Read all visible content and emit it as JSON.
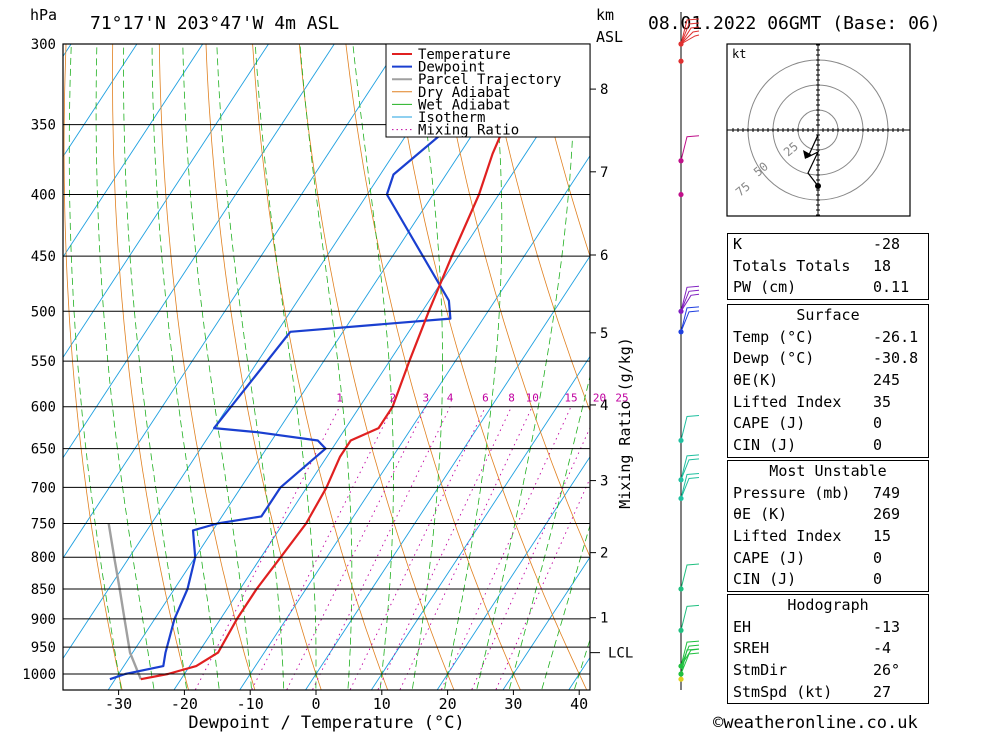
{
  "header": {
    "hpa_unit": "hPa",
    "location": "71°17'N  203°47'W  4m  ASL",
    "km_unit": "km",
    "asl_unit": "ASL",
    "datetime": "08.01.2022  06GMT  (Base: 06)",
    "footer": "©weatheronline.co.uk"
  },
  "colors": {
    "temperature": "#e02020",
    "dewpoint": "#1a3fd0",
    "parcel": "#a0a0a0",
    "dry_adiabat": "#e08020",
    "wet_adiabat": "#20b020",
    "isotherm": "#1fa0e0",
    "mixing_ratio": "#c000a0"
  },
  "chart_data": {
    "type": "line",
    "title": "71°17'N  203°47'W  4m  ASL",
    "xlabel": "Dewpoint / Temperature (°C)",
    "ylabel": "hPa",
    "xlim": [
      -40,
      40
    ],
    "ylim": [
      1050,
      300
    ],
    "x_ticks": [
      -30,
      -20,
      -10,
      0,
      10,
      20,
      30,
      40
    ],
    "pressure_levels": [
      300,
      350,
      400,
      450,
      500,
      550,
      600,
      650,
      700,
      750,
      800,
      850,
      900,
      950,
      1000
    ],
    "km_label": "km",
    "km_ticks": [
      {
        "km": "1",
        "p": 898
      },
      {
        "km": "2",
        "p": 793
      },
      {
        "km": "3",
        "p": 691
      },
      {
        "km": "4",
        "p": 598
      },
      {
        "km": "5",
        "p": 521
      },
      {
        "km": "6",
        "p": 449
      },
      {
        "km": "7",
        "p": 383
      },
      {
        "km": "8",
        "p": 327
      }
    ],
    "lcl_label": "LCL",
    "lcl_p": 960,
    "mixing_ratio_label": "Mixing Ratio (g/kg)",
    "mixing_ratios": [
      "1",
      "2",
      "3",
      "4",
      "6",
      "8",
      "10",
      "15",
      "20",
      "25"
    ],
    "legend": [
      "Temperature",
      "Dewpoint",
      "Parcel Trajectory",
      "Dry Adiabat",
      "Wet Adiabat",
      "Isotherm",
      "Mixing Ratio"
    ],
    "series": [
      {
        "name": "Temperature",
        "points": [
          [
            1010,
            -26.1
          ],
          [
            1000,
            -22.5
          ],
          [
            985,
            -19
          ],
          [
            960,
            -17
          ],
          [
            900,
            -17.5
          ],
          [
            850,
            -17.5
          ],
          [
            800,
            -17
          ],
          [
            750,
            -16.5
          ],
          [
            700,
            -17
          ],
          [
            660,
            -18
          ],
          [
            640,
            -18
          ],
          [
            625,
            -15
          ],
          [
            600,
            -15
          ],
          [
            550,
            -17
          ],
          [
            500,
            -19
          ],
          [
            450,
            -21
          ],
          [
            400,
            -23
          ],
          [
            370,
            -25
          ],
          [
            350,
            -26
          ],
          [
            320,
            -25
          ],
          [
            300,
            -24
          ]
        ]
      },
      {
        "name": "Dewpoint",
        "points": [
          [
            1010,
            -30.8
          ],
          [
            1000,
            -29
          ],
          [
            985,
            -24
          ],
          [
            960,
            -25
          ],
          [
            900,
            -27
          ],
          [
            850,
            -28
          ],
          [
            800,
            -30
          ],
          [
            760,
            -33
          ],
          [
            750,
            -30
          ],
          [
            740,
            -24
          ],
          [
            700,
            -24
          ],
          [
            650,
            -21
          ],
          [
            640,
            -23
          ],
          [
            630,
            -33
          ],
          [
            625,
            -40
          ],
          [
            520,
            -38
          ],
          [
            507,
            -15
          ],
          [
            490,
            -17
          ],
          [
            400,
            -37
          ],
          [
            385,
            -38
          ],
          [
            350,
            -34
          ],
          [
            330,
            -36
          ],
          [
            315,
            -32
          ],
          [
            300,
            -31
          ]
        ]
      },
      {
        "name": "Parcel Trajectory",
        "points": [
          [
            1010,
            -26.1
          ],
          [
            960,
            -30.4
          ],
          [
            900,
            -34.6
          ],
          [
            850,
            -38.3
          ],
          [
            800,
            -42.3
          ],
          [
            750,
            -46.5
          ]
        ]
      }
    ]
  },
  "hodograph": {
    "unit": "kt",
    "rings": [
      "25",
      "50",
      "75"
    ]
  },
  "indices": {
    "general": [
      {
        "label": "K",
        "value": "-28"
      },
      {
        "label": "Totals Totals",
        "value": "18"
      },
      {
        "label": "PW (cm)",
        "value": "0.11"
      }
    ],
    "surface": {
      "title": "Surface",
      "rows": [
        {
          "label": "Temp (°C)",
          "value": "-26.1"
        },
        {
          "label": "Dewp (°C)",
          "value": "-30.8"
        },
        {
          "label": "θE(K)",
          "value": "245"
        },
        {
          "label": "Lifted Index",
          "value": "35"
        },
        {
          "label": "CAPE (J)",
          "value": "0"
        },
        {
          "label": "CIN (J)",
          "value": "0"
        }
      ]
    },
    "most_unstable": {
      "title": "Most Unstable",
      "rows": [
        {
          "label": "Pressure (mb)",
          "value": "749"
        },
        {
          "label": "θE (K)",
          "value": "269"
        },
        {
          "label": "Lifted Index",
          "value": "15"
        },
        {
          "label": "CAPE (J)",
          "value": "0"
        },
        {
          "label": "CIN (J)",
          "value": "0"
        }
      ]
    },
    "hodograph": {
      "title": "Hodograph",
      "rows": [
        {
          "label": "EH",
          "value": "-13"
        },
        {
          "label": "SREH",
          "value": "-4"
        },
        {
          "label": "StmDir",
          "value": "26°"
        },
        {
          "label": "StmSpd (kt)",
          "value": "27"
        }
      ]
    }
  }
}
